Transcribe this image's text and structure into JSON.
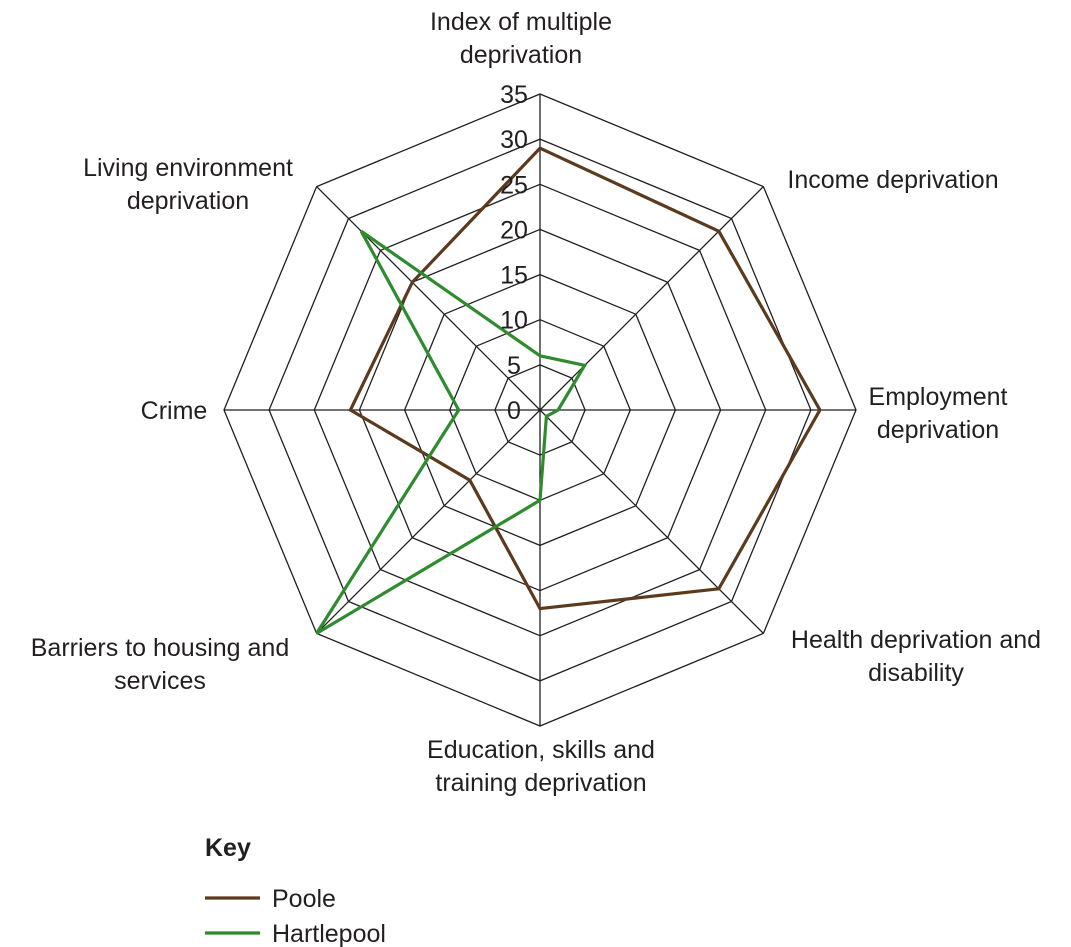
{
  "chart_data": {
    "type": "radar",
    "axes": [
      [
        "Index of multiple",
        "deprivation"
      ],
      [
        "Income deprivation"
      ],
      [
        "Employment",
        "deprivation"
      ],
      [
        "Health deprivation and",
        "disability"
      ],
      [
        "Education, skills and",
        "training deprivation"
      ],
      [
        "Barriers to housing and",
        "services"
      ],
      [
        "Crime"
      ],
      [
        "Living environment",
        "deprivation"
      ]
    ],
    "ticks": [
      0,
      5,
      10,
      15,
      20,
      25,
      30,
      35
    ],
    "range": [
      0,
      35
    ],
    "grid": true,
    "legend_title": "Key",
    "legend_position": "bottom",
    "series": [
      {
        "name": "Poole",
        "color": "#5b3a1e",
        "values": [
          29,
          28,
          31,
          28,
          22,
          11,
          21,
          20
        ]
      },
      {
        "name": "Hartlepool",
        "color": "#2e8b2e",
        "values": [
          6,
          7,
          2,
          1,
          10,
          35,
          9,
          28
        ]
      }
    ]
  }
}
